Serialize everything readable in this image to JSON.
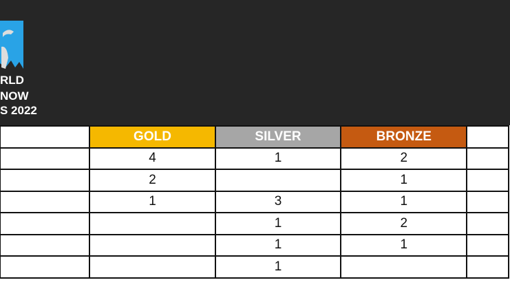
{
  "logo": {
    "line1": "RLD",
    "line2": "NOW",
    "line3": "S 2022"
  },
  "colors": {
    "gold": "#f5b800",
    "silver": "#a6a6a6",
    "bronze": "#c55a11",
    "background": "#262626"
  },
  "table": {
    "headers": [
      "",
      "GOLD",
      "SILVER",
      "BRONZE",
      ""
    ],
    "rows": [
      [
        "",
        "4",
        "1",
        "2",
        ""
      ],
      [
        "",
        "2",
        "",
        "1",
        ""
      ],
      [
        "",
        "1",
        "3",
        "1",
        ""
      ],
      [
        "",
        "",
        "1",
        "2",
        ""
      ],
      [
        "",
        "",
        "1",
        "1",
        ""
      ],
      [
        "",
        "",
        "1",
        "",
        ""
      ]
    ]
  }
}
